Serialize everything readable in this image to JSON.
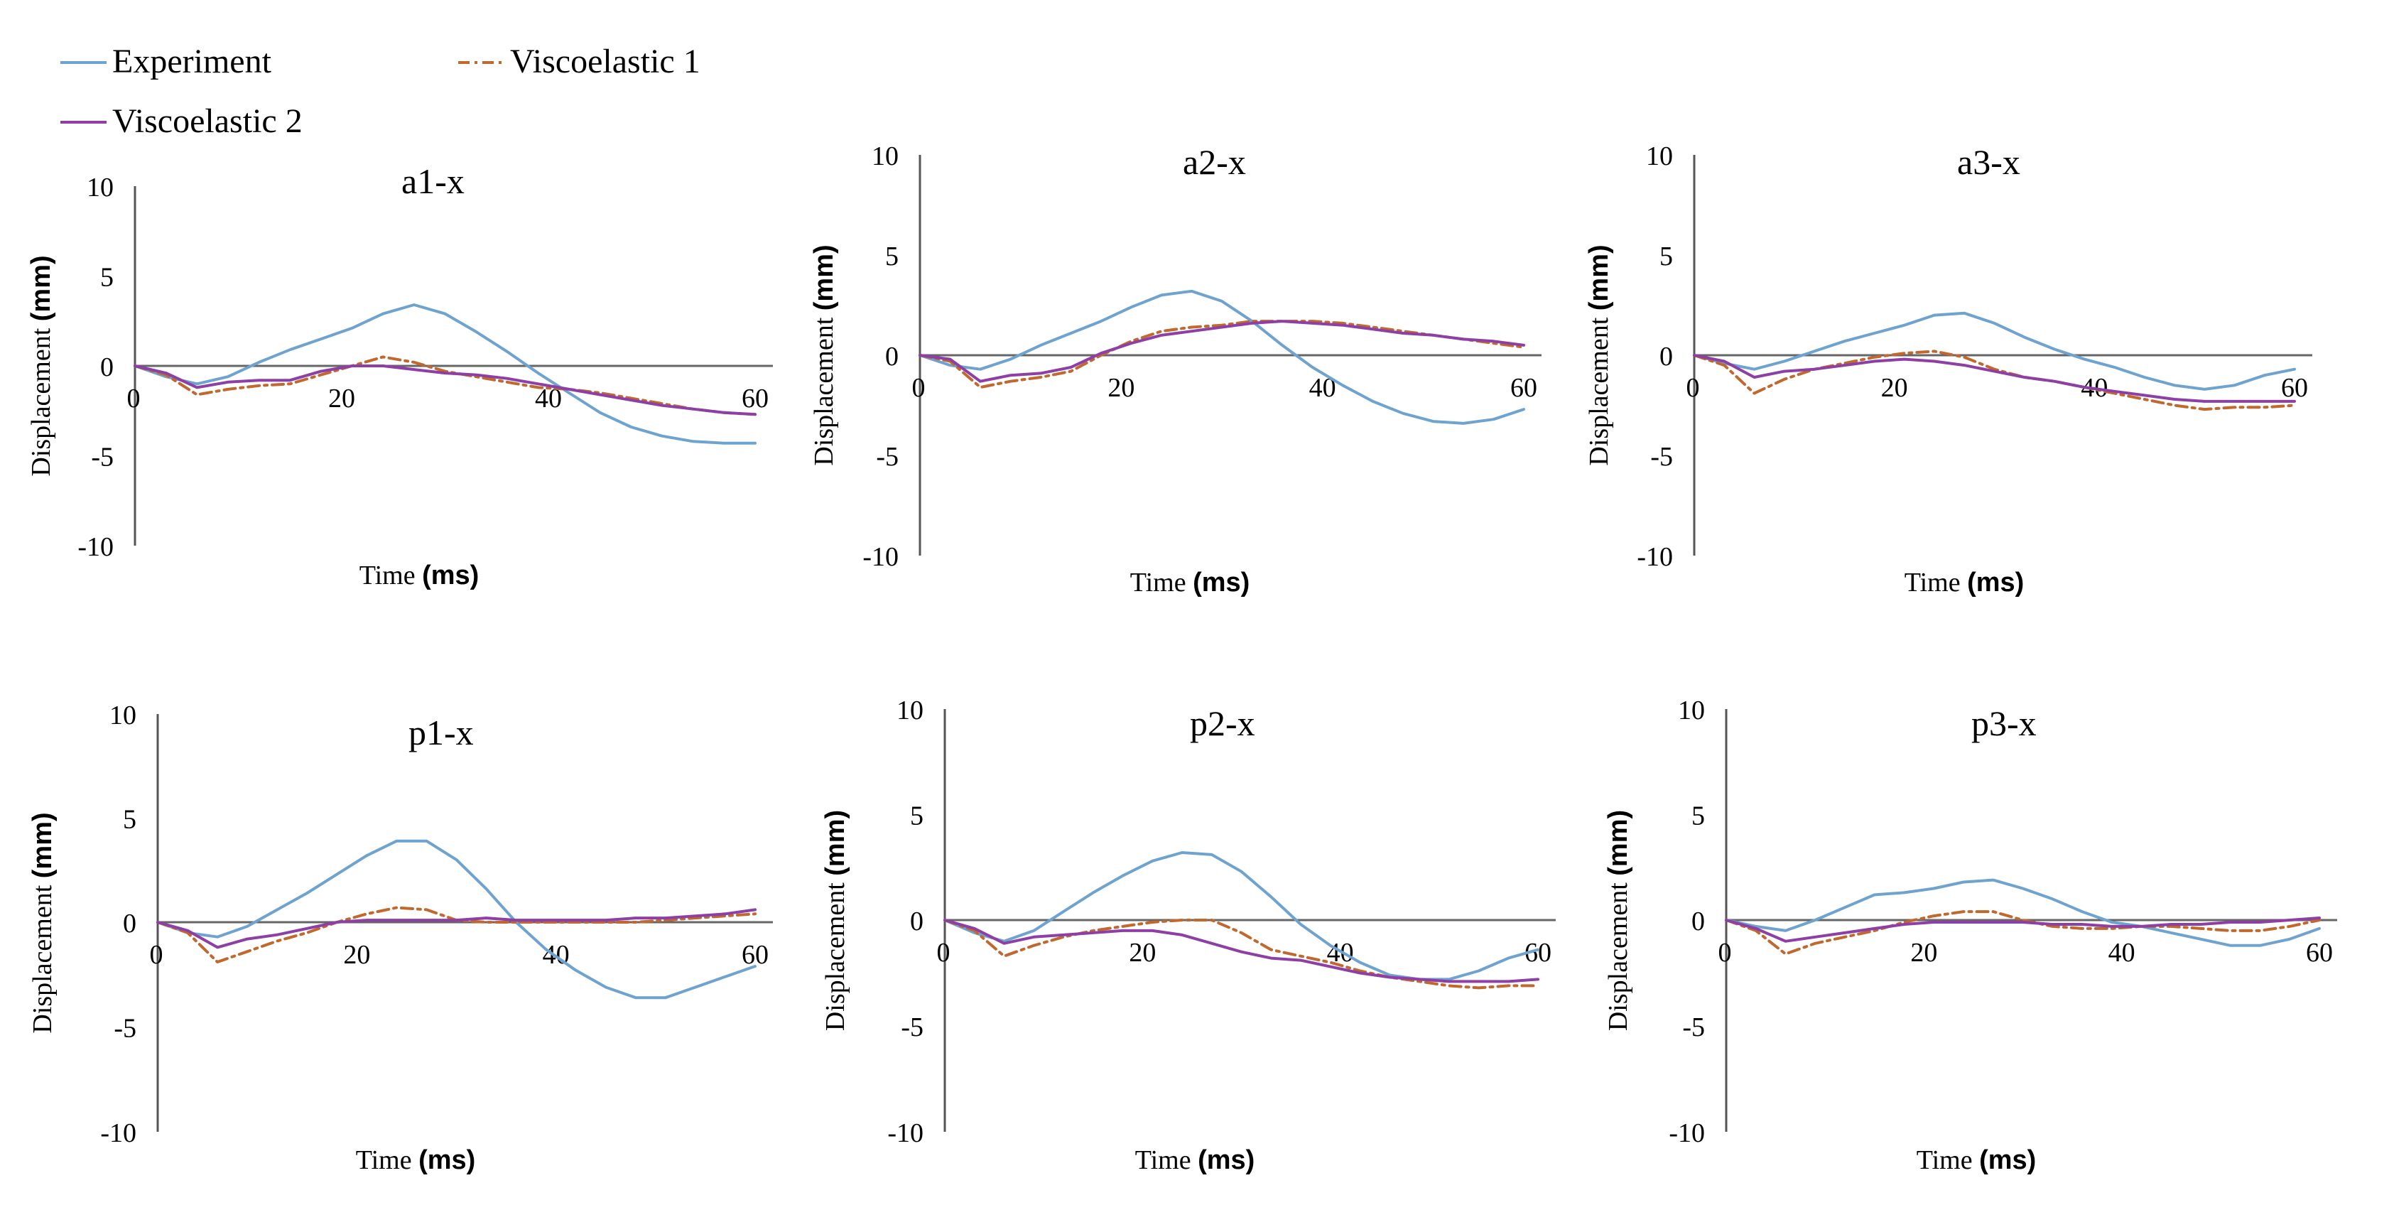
{
  "legend": [
    {
      "label": "Experiment",
      "color": "#6fa3cf",
      "dash": "solid"
    },
    {
      "label": "Viscoelastic 1",
      "color": "#c0682d",
      "dash": "dashdot"
    },
    {
      "label": "Viscoelastic 2",
      "color": "#8e3fa6",
      "dash": "solid"
    }
  ],
  "axis_text": {
    "ylabel": "Displacement",
    "yunit": "(mm)",
    "xlabel": "Time",
    "xunit": "(ms)"
  },
  "chart_data": [
    {
      "type": "line",
      "title": "a1-x",
      "xlim": [
        0,
        60
      ],
      "ylim": [
        -10,
        10
      ],
      "yticks": [
        "10",
        "5",
        "0",
        "-5",
        "-10"
      ],
      "xticks": [
        "0",
        "20",
        "40",
        "60"
      ],
      "series": [
        {
          "name": "Experiment",
          "x": [
            0,
            3,
            6,
            9,
            12,
            15,
            18,
            21,
            24,
            27,
            30,
            33,
            36,
            39,
            42,
            45,
            48,
            51,
            54,
            57,
            60
          ],
          "y": [
            0,
            -0.6,
            -1,
            -0.6,
            0.2,
            0.9,
            1.5,
            2.1,
            2.9,
            3.4,
            2.9,
            1.9,
            0.8,
            -0.4,
            -1.5,
            -2.6,
            -3.4,
            -3.9,
            -4.2,
            -4.3,
            -4.3
          ]
        },
        {
          "name": "Viscoelastic 1",
          "x": [
            0,
            3,
            6,
            9,
            12,
            15,
            18,
            21,
            24,
            27,
            30,
            33,
            36,
            39,
            42,
            45,
            48,
            51,
            54,
            57,
            60
          ],
          "y": [
            0,
            -0.5,
            -1.6,
            -1.3,
            -1.1,
            -1,
            -0.5,
            0,
            0.5,
            0.2,
            -0.3,
            -0.6,
            -0.9,
            -1.2,
            -1.3,
            -1.5,
            -1.8,
            -2.1,
            -2.4,
            -2.6,
            -2.7
          ]
        },
        {
          "name": "Viscoelastic 2",
          "x": [
            0,
            3,
            6,
            9,
            12,
            15,
            18,
            21,
            24,
            27,
            30,
            33,
            36,
            39,
            42,
            45,
            48,
            51,
            54,
            57,
            60
          ],
          "y": [
            0,
            -0.4,
            -1.2,
            -0.9,
            -0.8,
            -0.8,
            -0.3,
            0,
            0,
            -0.2,
            -0.4,
            -0.5,
            -0.7,
            -1,
            -1.3,
            -1.6,
            -1.9,
            -2.2,
            -2.4,
            -2.6,
            -2.7
          ]
        }
      ]
    },
    {
      "type": "line",
      "title": "a2-x",
      "xlim": [
        0,
        60
      ],
      "ylim": [
        -10,
        10
      ],
      "yticks": [
        "10",
        "5",
        "0",
        "-5",
        "-10"
      ],
      "xticks": [
        "0",
        "20",
        "40",
        "60"
      ],
      "series": [
        {
          "name": "Experiment",
          "x": [
            0,
            3,
            6,
            9,
            12,
            15,
            18,
            21,
            24,
            27,
            30,
            33,
            36,
            39,
            42,
            45,
            48,
            51,
            54,
            57,
            60
          ],
          "y": [
            0,
            -0.5,
            -0.7,
            -0.2,
            0.5,
            1.1,
            1.7,
            2.4,
            3,
            3.2,
            2.7,
            1.7,
            0.5,
            -0.6,
            -1.5,
            -2.3,
            -2.9,
            -3.3,
            -3.4,
            -3.2,
            -2.7
          ]
        },
        {
          "name": "Viscoelastic 1",
          "x": [
            0,
            3,
            6,
            9,
            12,
            15,
            18,
            21,
            24,
            27,
            30,
            33,
            36,
            39,
            42,
            45,
            48,
            51,
            54,
            57,
            60
          ],
          "y": [
            0,
            -0.3,
            -1.6,
            -1.3,
            -1.1,
            -0.8,
            0,
            0.7,
            1.2,
            1.4,
            1.5,
            1.7,
            1.7,
            1.7,
            1.6,
            1.4,
            1.2,
            1,
            0.8,
            0.6,
            0.4
          ]
        },
        {
          "name": "Viscoelastic 2",
          "x": [
            0,
            3,
            6,
            9,
            12,
            15,
            18,
            21,
            24,
            27,
            30,
            33,
            36,
            39,
            42,
            45,
            48,
            51,
            54,
            57,
            60
          ],
          "y": [
            0,
            -0.2,
            -1.3,
            -1,
            -0.9,
            -0.6,
            0.1,
            0.6,
            1,
            1.2,
            1.4,
            1.6,
            1.7,
            1.6,
            1.5,
            1.3,
            1.1,
            1,
            0.8,
            0.7,
            0.5
          ]
        }
      ]
    },
    {
      "type": "line",
      "title": "a3-x",
      "xlim": [
        0,
        60
      ],
      "ylim": [
        -10,
        10
      ],
      "yticks": [
        "10",
        "5",
        "0",
        "-5",
        "-10"
      ],
      "xticks": [
        "0",
        "20",
        "40",
        "60"
      ],
      "series": [
        {
          "name": "Experiment",
          "x": [
            0,
            3,
            6,
            9,
            12,
            15,
            18,
            21,
            24,
            27,
            30,
            33,
            36,
            39,
            42,
            45,
            48,
            51,
            54,
            57,
            60
          ],
          "y": [
            0,
            -0.4,
            -0.7,
            -0.3,
            0.2,
            0.7,
            1.1,
            1.5,
            2,
            2.1,
            1.6,
            0.9,
            0.3,
            -0.2,
            -0.6,
            -1.1,
            -1.5,
            -1.7,
            -1.5,
            -1,
            -0.7
          ]
        },
        {
          "name": "Viscoelastic 1",
          "x": [
            0,
            3,
            6,
            9,
            12,
            15,
            18,
            21,
            24,
            27,
            30,
            33,
            36,
            39,
            42,
            45,
            48,
            51,
            54,
            57,
            60
          ],
          "y": [
            0,
            -0.5,
            -1.9,
            -1.2,
            -0.7,
            -0.4,
            -0.1,
            0.1,
            0.2,
            -0.1,
            -0.7,
            -1.1,
            -1.3,
            -1.6,
            -1.9,
            -2.2,
            -2.5,
            -2.7,
            -2.6,
            -2.6,
            -2.5
          ]
        },
        {
          "name": "Viscoelastic 2",
          "x": [
            0,
            3,
            6,
            9,
            12,
            15,
            18,
            21,
            24,
            27,
            30,
            33,
            36,
            39,
            42,
            45,
            48,
            51,
            54,
            57,
            60
          ],
          "y": [
            0,
            -0.3,
            -1.1,
            -0.8,
            -0.7,
            -0.5,
            -0.3,
            -0.2,
            -0.3,
            -0.5,
            -0.8,
            -1.1,
            -1.3,
            -1.6,
            -1.8,
            -2,
            -2.2,
            -2.3,
            -2.3,
            -2.3,
            -2.3
          ]
        }
      ]
    },
    {
      "type": "line",
      "title": "p1-x",
      "xlim": [
        0,
        60
      ],
      "ylim": [
        -10,
        10
      ],
      "yticks": [
        "10",
        "5",
        "0",
        "-5",
        "-10"
      ],
      "xticks": [
        "0",
        "20",
        "40",
        "60"
      ],
      "series": [
        {
          "name": "Experiment",
          "x": [
            0,
            3,
            6,
            9,
            12,
            15,
            18,
            21,
            24,
            27,
            30,
            33,
            36,
            39,
            42,
            45,
            48,
            51,
            54,
            57,
            60
          ],
          "y": [
            0,
            -0.5,
            -0.7,
            -0.2,
            0.6,
            1.4,
            2.3,
            3.2,
            3.9,
            3.9,
            3,
            1.6,
            0,
            -1.3,
            -2.3,
            -3.1,
            -3.6,
            -3.6,
            -3.1,
            -2.6,
            -2.1
          ]
        },
        {
          "name": "Viscoelastic 1",
          "x": [
            0,
            3,
            6,
            9,
            12,
            15,
            18,
            21,
            24,
            27,
            30,
            33,
            36,
            39,
            42,
            45,
            48,
            51,
            54,
            57,
            60
          ],
          "y": [
            0,
            -0.5,
            -1.9,
            -1.4,
            -0.9,
            -0.5,
            0,
            0.4,
            0.7,
            0.6,
            0.1,
            0,
            0,
            0,
            0,
            0,
            0,
            0.1,
            0.2,
            0.3,
            0.4
          ]
        },
        {
          "name": "Viscoelastic 2",
          "x": [
            0,
            3,
            6,
            9,
            12,
            15,
            18,
            21,
            24,
            27,
            30,
            33,
            36,
            39,
            42,
            45,
            48,
            51,
            54,
            57,
            60
          ],
          "y": [
            0,
            -0.4,
            -1.2,
            -0.8,
            -0.6,
            -0.3,
            0,
            0.1,
            0.1,
            0.1,
            0.1,
            0.2,
            0.1,
            0.1,
            0.1,
            0.1,
            0.2,
            0.2,
            0.3,
            0.4,
            0.6
          ]
        }
      ]
    },
    {
      "type": "line",
      "title": "p2-x",
      "xlim": [
        0,
        60
      ],
      "ylim": [
        -10,
        10
      ],
      "yticks": [
        "10",
        "5",
        "0",
        "-5",
        "-10"
      ],
      "xticks": [
        "0",
        "20",
        "40",
        "60"
      ],
      "series": [
        {
          "name": "Experiment",
          "x": [
            0,
            3,
            6,
            9,
            12,
            15,
            18,
            21,
            24,
            27,
            30,
            33,
            36,
            39,
            42,
            45,
            48,
            51,
            54,
            57,
            60
          ],
          "y": [
            0,
            -0.6,
            -1,
            -0.5,
            0.4,
            1.3,
            2.1,
            2.8,
            3.2,
            3.1,
            2.3,
            1.1,
            -0.2,
            -1.2,
            -2,
            -2.6,
            -2.8,
            -2.8,
            -2.4,
            -1.8,
            -1.4
          ]
        },
        {
          "name": "Viscoelastic 1",
          "x": [
            0,
            3,
            6,
            9,
            12,
            15,
            18,
            21,
            24,
            27,
            30,
            33,
            36,
            39,
            42,
            45,
            48,
            51,
            54,
            57,
            60
          ],
          "y": [
            0,
            -0.5,
            -1.7,
            -1.2,
            -0.8,
            -0.5,
            -0.3,
            -0.1,
            0,
            0,
            -0.6,
            -1.4,
            -1.7,
            -2,
            -2.4,
            -2.7,
            -2.9,
            -3.1,
            -3.2,
            -3.1,
            -3.1
          ]
        },
        {
          "name": "Viscoelastic 2",
          "x": [
            0,
            3,
            6,
            9,
            12,
            15,
            18,
            21,
            24,
            27,
            30,
            33,
            36,
            39,
            42,
            45,
            48,
            51,
            54,
            57,
            60
          ],
          "y": [
            0,
            -0.4,
            -1.1,
            -0.8,
            -0.7,
            -0.6,
            -0.5,
            -0.5,
            -0.7,
            -1.1,
            -1.5,
            -1.8,
            -1.9,
            -2.2,
            -2.5,
            -2.7,
            -2.8,
            -2.9,
            -2.9,
            -2.9,
            -2.8
          ]
        }
      ]
    },
    {
      "type": "line",
      "title": "p3-x",
      "xlim": [
        0,
        60
      ],
      "ylim": [
        -10,
        10
      ],
      "yticks": [
        "10",
        "5",
        "0",
        "-5",
        "-10"
      ],
      "xticks": [
        "0",
        "20",
        "40",
        "60"
      ],
      "series": [
        {
          "name": "Experiment",
          "x": [
            0,
            3,
            6,
            9,
            12,
            15,
            18,
            21,
            24,
            27,
            30,
            33,
            36,
            39,
            42,
            45,
            48,
            51,
            54,
            57,
            60
          ],
          "y": [
            0,
            -0.3,
            -0.5,
            0,
            0.6,
            1.2,
            1.3,
            1.5,
            1.8,
            1.9,
            1.5,
            1,
            0.4,
            -0.1,
            -0.3,
            -0.6,
            -0.9,
            -1.2,
            -1.2,
            -0.9,
            -0.4
          ]
        },
        {
          "name": "Viscoelastic 1",
          "x": [
            0,
            3,
            6,
            9,
            12,
            15,
            18,
            21,
            24,
            27,
            30,
            33,
            36,
            39,
            42,
            45,
            48,
            51,
            54,
            57,
            60
          ],
          "y": [
            0,
            -0.5,
            -1.6,
            -1.1,
            -0.8,
            -0.5,
            -0.1,
            0.2,
            0.4,
            0.4,
            0,
            -0.3,
            -0.4,
            -0.4,
            -0.3,
            -0.3,
            -0.4,
            -0.5,
            -0.5,
            -0.3,
            0
          ]
        },
        {
          "name": "Viscoelastic 2",
          "x": [
            0,
            3,
            6,
            9,
            12,
            15,
            18,
            21,
            24,
            27,
            30,
            33,
            36,
            39,
            42,
            45,
            48,
            51,
            54,
            57,
            60
          ],
          "y": [
            0,
            -0.4,
            -1,
            -0.8,
            -0.6,
            -0.4,
            -0.2,
            -0.1,
            -0.1,
            -0.1,
            -0.1,
            -0.2,
            -0.2,
            -0.3,
            -0.3,
            -0.2,
            -0.2,
            -0.1,
            -0.1,
            0,
            0.1
          ]
        }
      ]
    }
  ]
}
